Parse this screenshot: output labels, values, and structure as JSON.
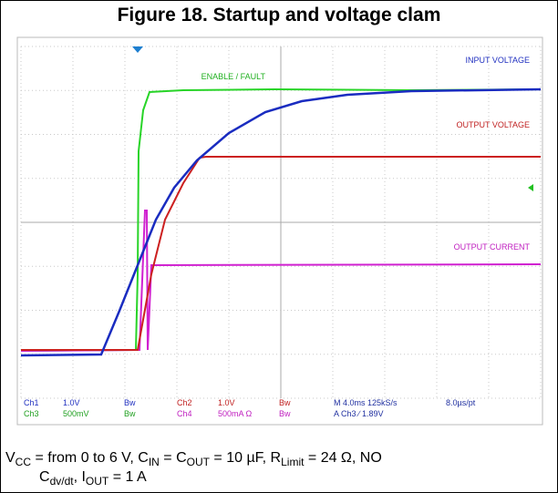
{
  "title": "Figure 18. Startup and voltage clam",
  "traces": [
    {
      "label": "INPUT VOLTAGE"
    },
    {
      "label": "ENABLE / FAULT"
    },
    {
      "label": "OUTPUT VOLTAGE"
    },
    {
      "label": "OUTPUT CURRENT"
    }
  ],
  "readout": {
    "rows": [
      [
        "Ch1",
        "1.0V",
        "Bw",
        "Ch2",
        "1.0V",
        "Bw",
        "M 4.0ms 125kS/s",
        "8.0µs/pt"
      ],
      [
        "Ch3",
        "500mV",
        "Bw",
        "Ch4",
        "500mA Ω",
        "Bw",
        "A Ch3 ∕ 1.89V"
      ]
    ]
  },
  "caption": {
    "line1": [
      "V",
      "CC",
      " = from 0 to 6 V, C",
      "IN",
      " = C",
      "OUT",
      " = 10 µF, R",
      "Limit",
      " = 24 Ω, NO"
    ],
    "line2": [
      "C",
      "dv/dt",
      ", I",
      "OUT",
      " = 1 A"
    ]
  }
}
